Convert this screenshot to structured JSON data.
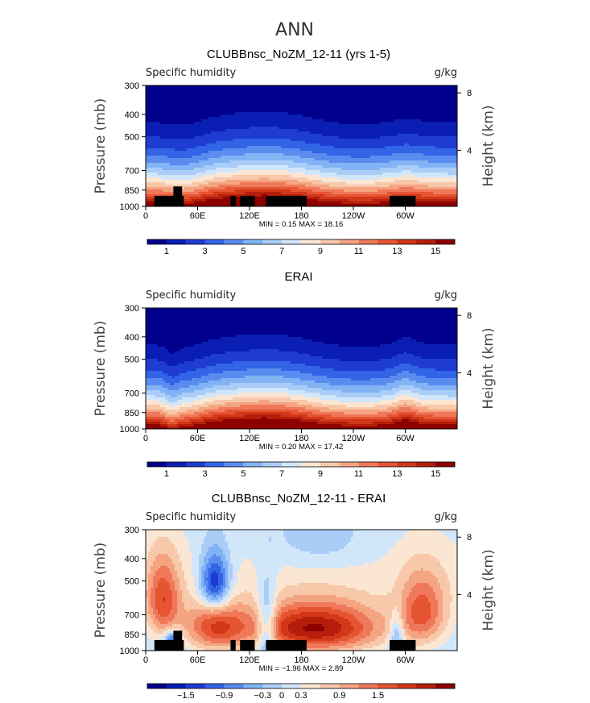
{
  "chart_data": {
    "type": "contour",
    "title": "ANN",
    "x_ticks": [
      "0",
      "60E",
      "120E",
      "180",
      "120W",
      "60W"
    ],
    "x_tick_lon": [
      0,
      60,
      120,
      180,
      240,
      300
    ],
    "x_range": [
      0,
      360
    ],
    "y_ticks": [
      "300",
      "400",
      "500",
      "700",
      "850",
      "1000"
    ],
    "y_tick_p": [
      300,
      400,
      500,
      700,
      850,
      1000
    ],
    "y_range": [
      1000,
      300
    ],
    "ylabel": "Pressure (mb)",
    "y2label": "Height (km)",
    "y2_ticks": [
      "8",
      "4"
    ],
    "y2_tick_km": [
      8,
      4
    ],
    "panels": [
      {
        "title": "CLUBBnsc_NoZM_12-11 (yrs 1-5)",
        "left_label": "Specific humidity",
        "right_label": "g/kg",
        "stats": "MIN =    0.15   MAX =   18.16",
        "kind": "abs",
        "colorbar_levels": [
          0,
          1,
          2,
          3,
          4,
          5,
          6,
          7,
          8,
          9,
          10,
          11,
          12,
          13,
          14,
          15,
          16
        ],
        "colorbar_labels": [
          "1",
          "3",
          "5",
          "7",
          "9",
          "11",
          "13",
          "15"
        ],
        "colorbar_label_values": [
          1,
          3,
          5,
          7,
          9,
          11,
          13,
          15
        ],
        "topography": true
      },
      {
        "title": "ERAI",
        "left_label": "Specific humidity",
        "right_label": "g/kg",
        "stats": "MIN =    0.20   MAX =   17.42",
        "kind": "abs",
        "colorbar_levels": [
          0,
          1,
          2,
          3,
          4,
          5,
          6,
          7,
          8,
          9,
          10,
          11,
          12,
          13,
          14,
          15,
          16
        ],
        "colorbar_labels": [
          "1",
          "3",
          "5",
          "7",
          "9",
          "11",
          "13",
          "15"
        ],
        "colorbar_label_values": [
          1,
          3,
          5,
          7,
          9,
          11,
          13,
          15
        ],
        "topography": false
      },
      {
        "title": "CLUBBnsc_NoZM_12-11 - ERAI",
        "left_label": "Specific humidity",
        "right_label": "g/kg",
        "stats": "MIN =   −1.96   MAX =    2.89",
        "kind": "diff",
        "colorbar_levels": [
          -2.1,
          -1.8,
          -1.5,
          -1.2,
          -0.9,
          -0.6,
          -0.3,
          0,
          0.3,
          0.6,
          0.9,
          1.2,
          1.5,
          1.8,
          2.1,
          2.4,
          2.7
        ],
        "colorbar_labels": [
          "−1.5",
          "−0.9",
          "−0.3",
          "0",
          "0.3",
          "0.9",
          "1.5"
        ],
        "colorbar_label_values": [
          -1.5,
          -0.9,
          -0.3,
          0,
          0.3,
          0.9,
          1.5
        ],
        "topography": true
      }
    ],
    "colors": [
      "#00008c",
      "#0a1eb4",
      "#1e3cd2",
      "#3264e6",
      "#5a8cf0",
      "#82b4f5",
      "#aacdf8",
      "#d2e6fa",
      "#fae6d2",
      "#f8c8aa",
      "#f5a482",
      "#f0785a",
      "#e65532",
      "#d23719",
      "#b41e0a",
      "#8c0000"
    ]
  }
}
